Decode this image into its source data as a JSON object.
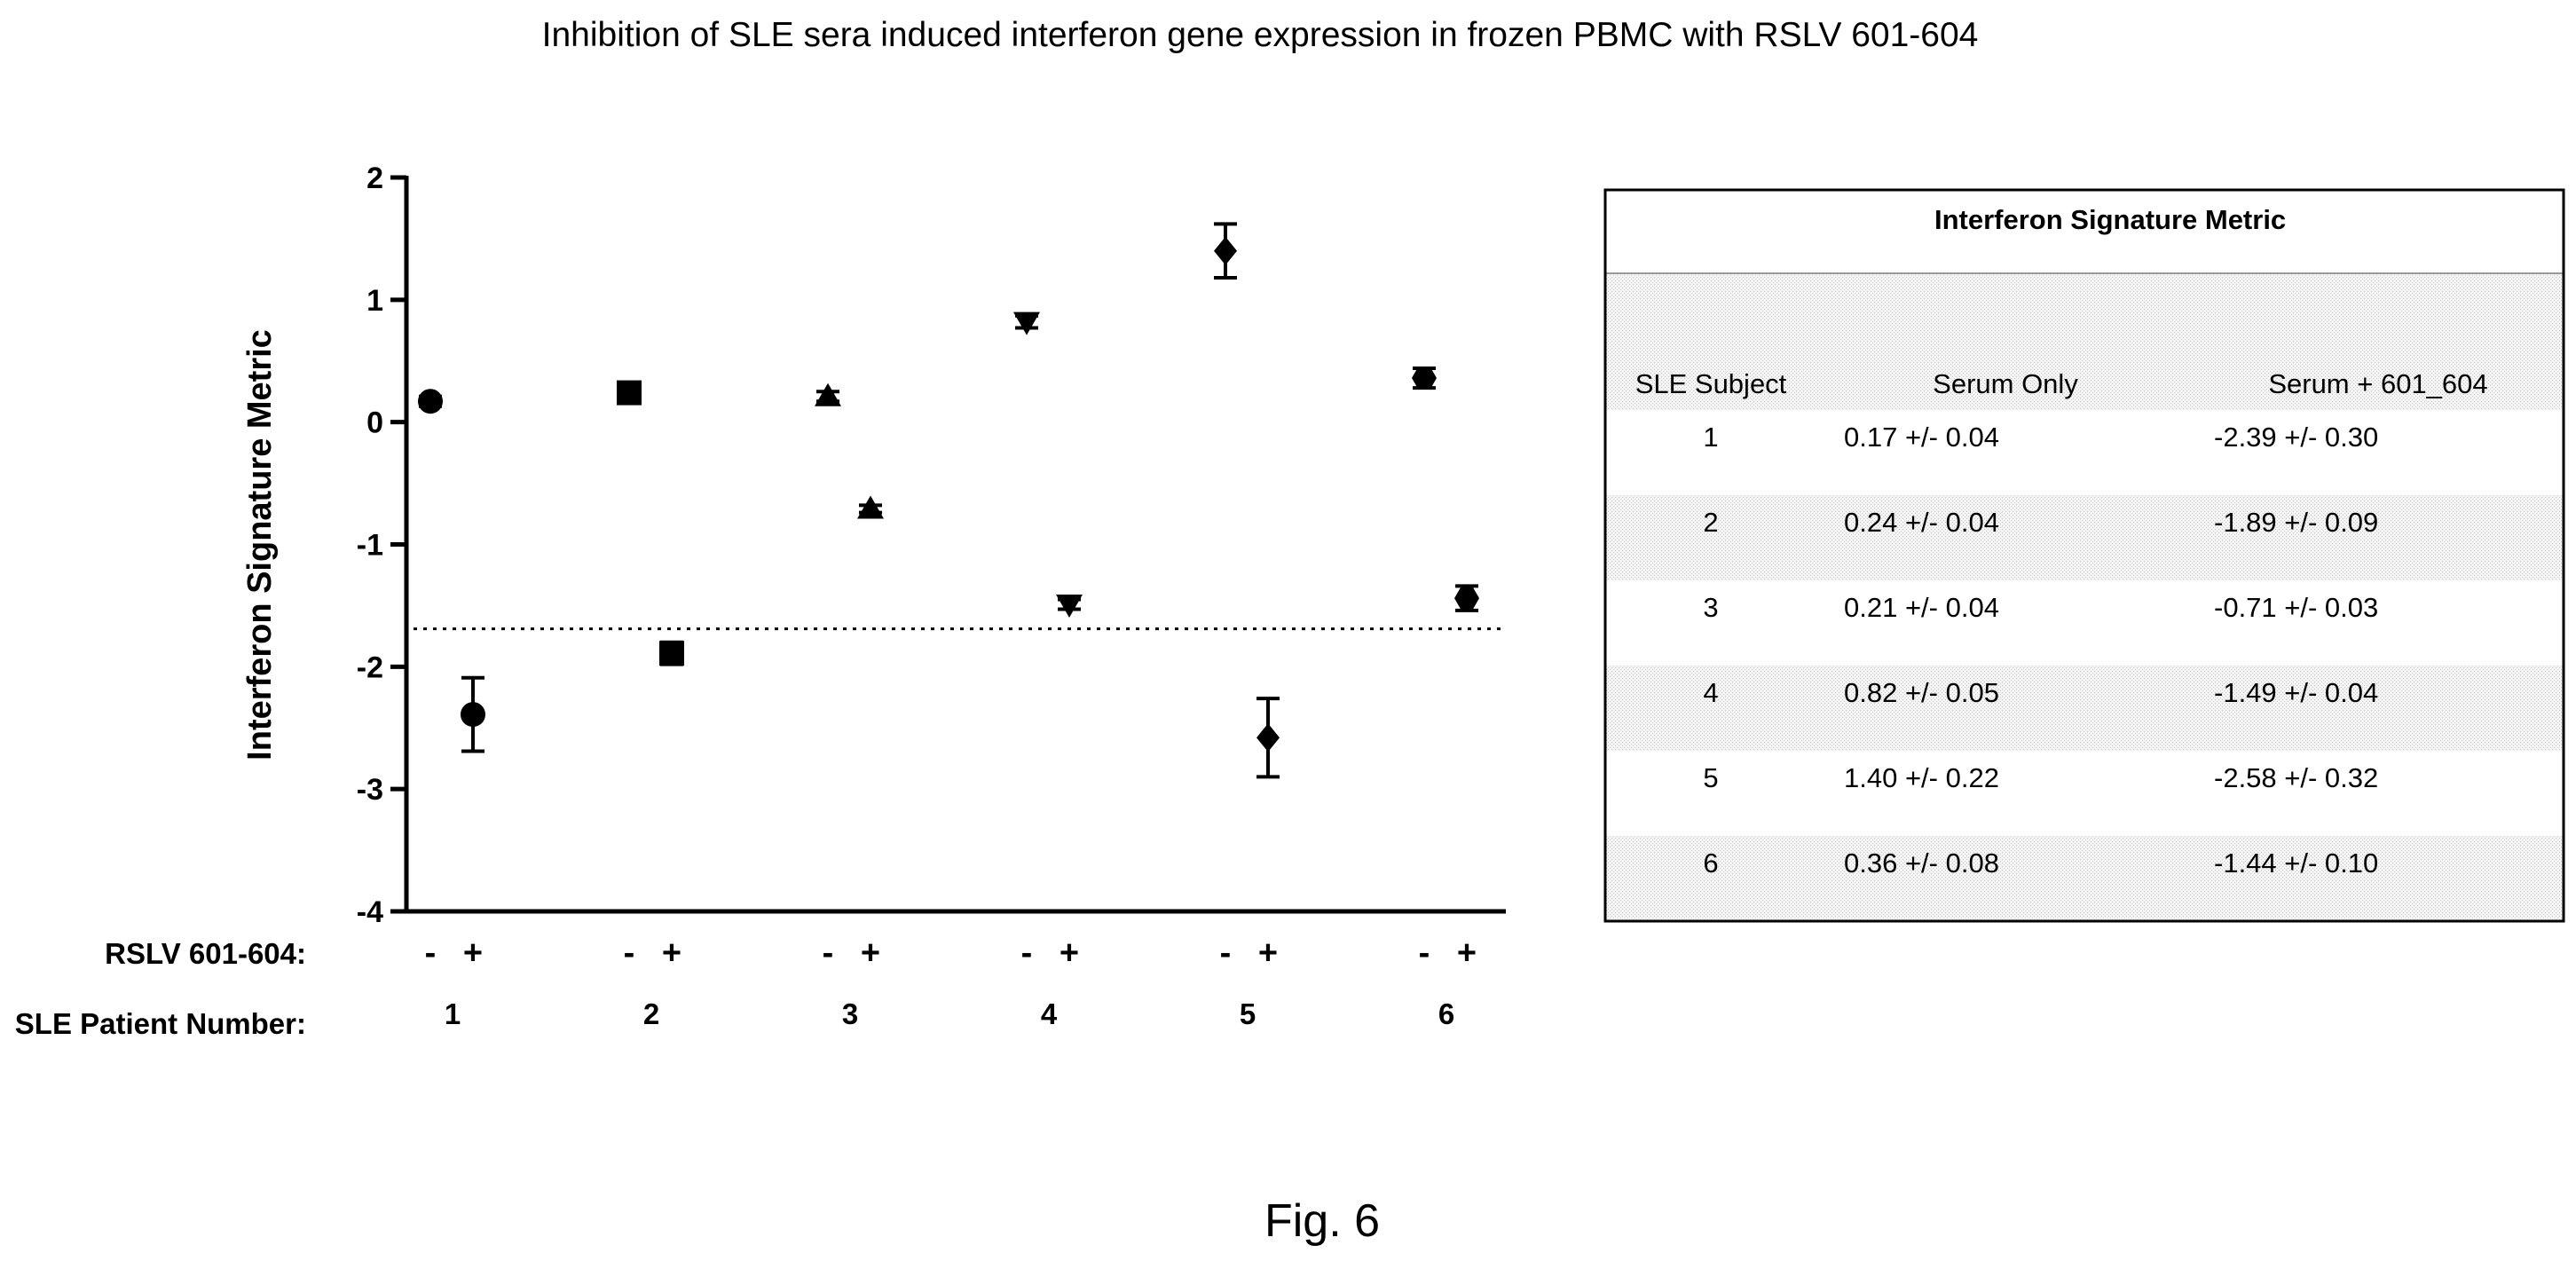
{
  "figure": {
    "title": "Inhibition of SLE sera induced interferon gene expression in frozen PBMC with RSLV 601-604",
    "caption": "Fig. 6"
  },
  "chart_data": [
    {
      "type": "scatter",
      "ylabel": "Interferon  Signature Metric",
      "ylim": [
        -4,
        2
      ],
      "yticks": [
        "2",
        "1",
        "0",
        "-1",
        "-2",
        "-3",
        "-4"
      ],
      "threshold": -1.69,
      "treatment_row_label": "RSLV 601-604:",
      "patient_row_label": "SLE Patient Number:",
      "treatment_signs": [
        "-",
        "+"
      ],
      "patients": [
        {
          "number": "1",
          "marker": "circle",
          "minus": {
            "y": 0.17,
            "err": 0.04
          },
          "plus": {
            "y": -2.39,
            "err": 0.3
          }
        },
        {
          "number": "2",
          "marker": "square",
          "minus": {
            "y": 0.24,
            "err": 0.04
          },
          "plus": {
            "y": -1.89,
            "err": 0.09
          }
        },
        {
          "number": "3",
          "marker": "triangle-up",
          "minus": {
            "y": 0.21,
            "err": 0.04
          },
          "plus": {
            "y": -0.71,
            "err": 0.03
          }
        },
        {
          "number": "4",
          "marker": "triangle-down",
          "minus": {
            "y": 0.82,
            "err": 0.05
          },
          "plus": {
            "y": -1.49,
            "err": 0.04
          }
        },
        {
          "number": "5",
          "marker": "diamond",
          "minus": {
            "y": 1.4,
            "err": 0.22
          },
          "plus": {
            "y": -2.58,
            "err": 0.32
          }
        },
        {
          "number": "6",
          "marker": "hexagon",
          "minus": {
            "y": 0.36,
            "err": 0.08
          },
          "plus": {
            "y": -1.44,
            "err": 0.1
          }
        }
      ]
    },
    {
      "type": "table",
      "title": "Interferon Signature Metric",
      "columns": [
        "SLE Subject",
        "Serum Only",
        "Serum + 601_604"
      ],
      "rows": [
        [
          "1",
          "0.17 +/- 0.04",
          "-2.39 +/- 0.30"
        ],
        [
          "2",
          "0.24 +/- 0.04",
          "-1.89 +/- 0.09"
        ],
        [
          "3",
          "0.21 +/- 0.04",
          "-0.71 +/- 0.03"
        ],
        [
          "4",
          "0.82 +/- 0.05",
          "-1.49 +/- 0.04"
        ],
        [
          "5",
          "1.40 +/- 0.22",
          "-2.58 +/- 0.32"
        ],
        [
          "6",
          "0.36 +/- 0.08",
          "-1.44 +/- 0.10"
        ]
      ]
    }
  ]
}
